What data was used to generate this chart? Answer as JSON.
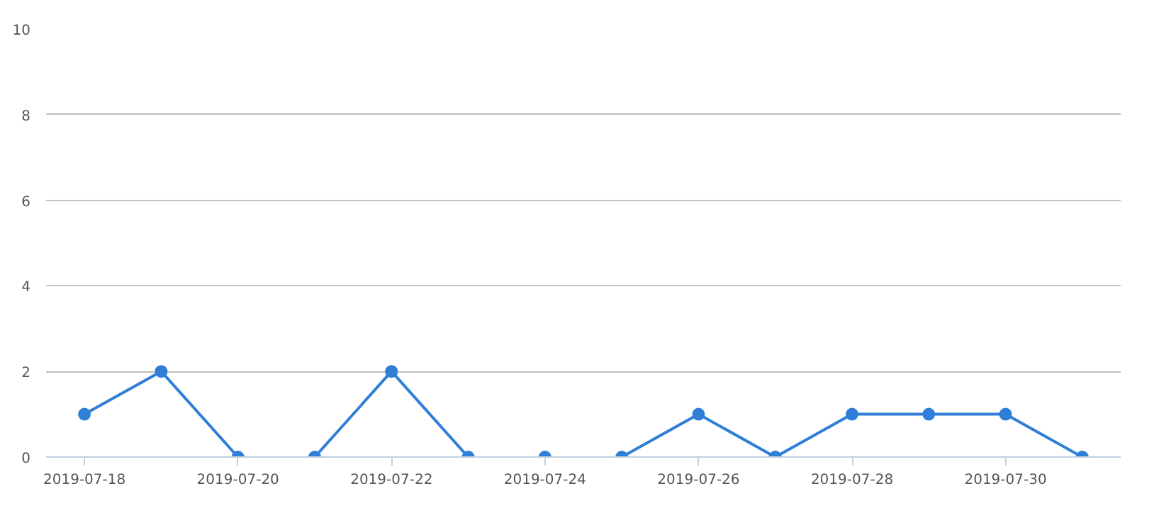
{
  "chart_data": {
    "type": "line",
    "xlim": [
      "2019-07-17T12:00",
      "2019-07-31T12:00"
    ],
    "ylim": [
      0,
      10
    ],
    "xticks": [
      "2019-07-18",
      "2019-07-20",
      "2019-07-22",
      "2019-07-24",
      "2019-07-26",
      "2019-07-28",
      "2019-07-30"
    ],
    "yticks": [
      0,
      2,
      4,
      6,
      8,
      10
    ],
    "grid": "y",
    "marker": "circle",
    "line_style": "solid",
    "series": [
      {
        "color": "#2f7ed8",
        "x": [
          "2019-07-18",
          "2019-07-19",
          "2019-07-20"
        ],
        "values": [
          1,
          2,
          0
        ]
      },
      {
        "color": "#2f7ed8",
        "x": [
          "2019-07-21",
          "2019-07-22",
          "2019-07-23"
        ],
        "values": [
          0,
          2,
          0
        ]
      },
      {
        "color": "#2f7ed8",
        "x": [
          "2019-07-24"
        ],
        "values": [
          0
        ]
      },
      {
        "color": "#2f7ed8",
        "x": [
          "2019-07-25",
          "2019-07-26",
          "2019-07-27",
          "2019-07-28",
          "2019-07-29",
          "2019-07-30",
          "2019-07-31"
        ],
        "values": [
          0,
          1,
          0,
          1,
          1,
          1,
          0
        ]
      }
    ]
  }
}
